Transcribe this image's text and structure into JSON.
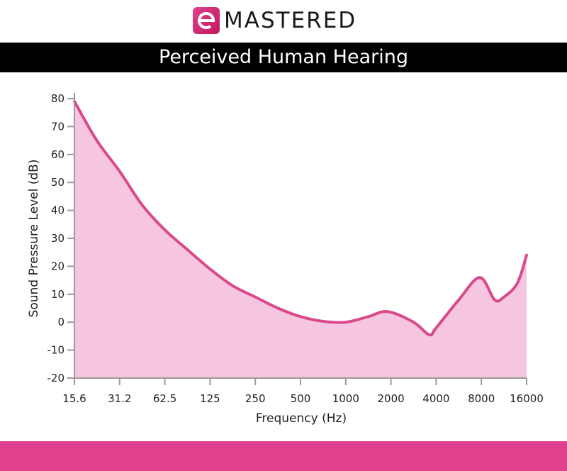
{
  "logo": {
    "text": "MASTERED"
  },
  "colors": {
    "line": "#d94a8c",
    "fill": "#f6c6e0",
    "axis": "#9a9a9a",
    "band": "#e0418f"
  },
  "chart_data": {
    "type": "area",
    "title": "Perceived Human Hearing",
    "xlabel": "Frequency (Hz)",
    "ylabel": "Sound Pressure Level (dB)",
    "xscale": "log2",
    "xticks": [
      "15.6",
      "31.2",
      "62.5",
      "125",
      "250",
      "500",
      "1000",
      "2000",
      "4000",
      "8000",
      "16000"
    ],
    "yticks": [
      -20,
      -10,
      0,
      10,
      20,
      30,
      40,
      50,
      60,
      70,
      80
    ],
    "ylim": [
      -20,
      80
    ],
    "grid": false,
    "series": [
      {
        "x": [
          15.6,
          22,
          31.2,
          44,
          62.5,
          88,
          125,
          177,
          250,
          354,
          500,
          707,
          1000,
          1414,
          1900,
          2828,
          3600,
          4000,
          5657,
          7800,
          9800,
          11300,
          13900,
          16000
        ],
        "y": [
          79,
          65,
          54,
          42,
          33,
          26,
          19,
          13,
          9,
          5,
          2,
          0.3,
          0,
          2,
          3.8,
          0,
          -4.5,
          -2,
          8,
          16,
          8,
          9,
          14,
          24
        ]
      }
    ]
  }
}
